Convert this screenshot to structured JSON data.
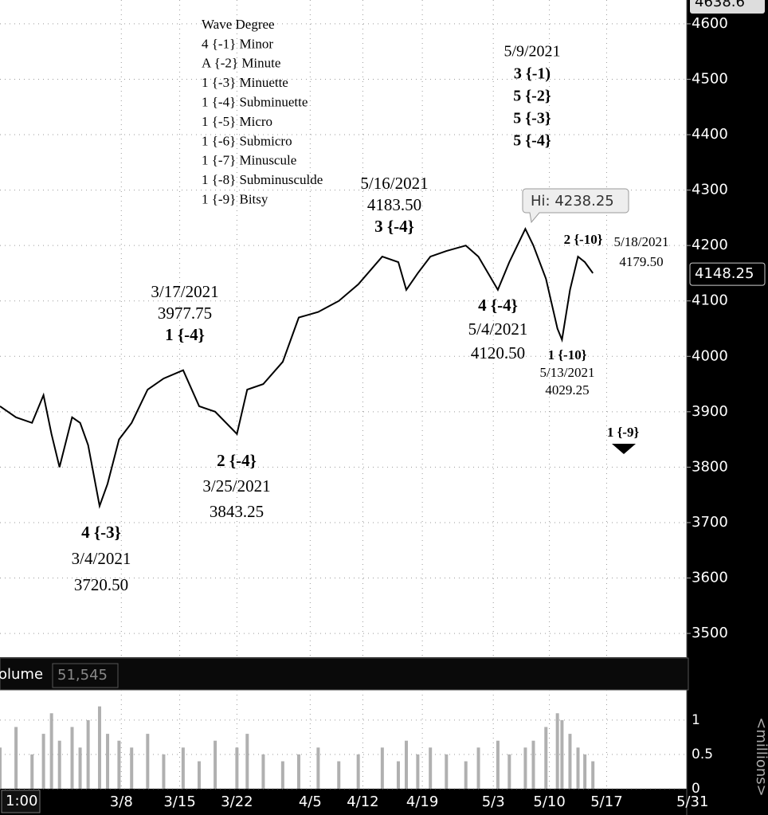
{
  "chart_data": {
    "type": "line",
    "x": [
      0,
      1.4,
      2.8,
      3.8,
      4.5,
      5.2,
      6.3,
      7.0,
      7.7,
      8.7,
      9.4,
      10.4,
      11.5,
      12.9,
      14.3,
      16.0,
      17.4,
      18.8,
      20.7,
      21.6,
      23.0,
      24.7,
      26.1,
      27.8,
      29.6,
      31.3,
      33.4,
      34.8,
      35.5,
      36.5,
      37.6,
      39.0,
      40.7,
      41.8,
      43.5,
      44.5,
      45.9,
      46.6,
      47.7,
      48.7,
      49.1,
      49.8,
      50.5,
      51.1,
      51.8
    ],
    "series": [
      {
        "color": "#000000",
        "values": [
          3910,
          3890,
          3880,
          3930,
          3860,
          3800,
          3890,
          3880,
          3840,
          3730,
          3770,
          3850,
          3880,
          3940,
          3960,
          3975,
          3910,
          3900,
          3860,
          3940,
          3950,
          3990,
          4070,
          4080,
          4100,
          4130,
          4180,
          4170,
          4120,
          4150,
          4180,
          4190,
          4200,
          4180,
          4120,
          4170,
          4230,
          4200,
          4140,
          4050,
          4030,
          4120,
          4180,
          4170,
          4150
        ]
      }
    ],
    "xlim": [
      0,
      60
    ],
    "xticks": [
      {
        "value": 10.6,
        "label": "3/8"
      },
      {
        "value": 15.7,
        "label": "3/15"
      },
      {
        "value": 20.7,
        "label": "3/22"
      },
      {
        "value": 27.1,
        "label": "4/5"
      },
      {
        "value": 31.7,
        "label": "4/12"
      },
      {
        "value": 36.9,
        "label": "4/19"
      },
      {
        "value": 43.1,
        "label": "5/3"
      },
      {
        "value": 48.0,
        "label": "5/10"
      },
      {
        "value": 53.0,
        "label": "5/17"
      },
      {
        "value": 60.5,
        "label": "5/31"
      }
    ],
    "ylim": [
      3457,
      4643
    ],
    "yticks": [
      3500,
      3600,
      3700,
      3800,
      3900,
      4000,
      4100,
      4200,
      4300,
      4400,
      4500,
      4600
    ],
    "grid": true,
    "last_price": 4148.25,
    "top_price": 4638.6,
    "hi_label": "Hi: 4238.25",
    "time_frame": "1:00",
    "wave_degree": [
      "Wave Degree",
      "4 {-1} Minor",
      "A {-2} Minute",
      "1 {-3} Minuette",
      "1 {-4} Subminuette",
      "1 {-5} Micro",
      "1 {-6} Submicro",
      "1 {-7} Minuscule",
      "1 {-8} Subminusculde",
      "1 {-9} Bitsy"
    ],
    "annotations": [
      [
        "5/9/2021",
        "3 {-1)",
        "5 {-2}",
        "5 {-3}",
        "5 {-4}"
      ],
      [
        "5/16/2021",
        "4183.50",
        "3 {-4}"
      ],
      [
        "3/17/2021",
        "3977.75",
        "1 {-4}"
      ],
      [
        "4 {-4}",
        "5/4/2021",
        "4120.50"
      ],
      [
        "2 {-10}"
      ],
      [
        "5/18/2021",
        "4179.50"
      ],
      [
        "1 {-10}",
        "5/13/2021",
        "4029.25"
      ],
      [
        "2 {-4}",
        "3/25/2021",
        "3843.25"
      ],
      [
        "4 {-3}",
        "3/4/2021",
        "3720.50"
      ],
      [
        "1 {-9}"
      ]
    ],
    "volume": {
      "label": "olume",
      "last": "51,545",
      "unit": "<millions>",
      "color": "#b0b0b0",
      "values": [
        0.6,
        0.9,
        0.5,
        0.8,
        1.1,
        0.7,
        0.9,
        0.6,
        1.0,
        1.2,
        0.8,
        0.7,
        0.6,
        0.8,
        0.5,
        0.6,
        0.4,
        0.7,
        0.6,
        0.8,
        0.5,
        0.4,
        0.5,
        0.6,
        0.4,
        0.5,
        0.6,
        0.4,
        0.7,
        0.5,
        0.6,
        0.5,
        0.4,
        0.6,
        0.7,
        0.5,
        0.6,
        0.7,
        0.9,
        1.1,
        1.0,
        0.8,
        0.6,
        0.5,
        0.4
      ],
      "ylim": [
        0,
        1.44
      ],
      "yticks": [
        0,
        0.5,
        1
      ]
    }
  }
}
